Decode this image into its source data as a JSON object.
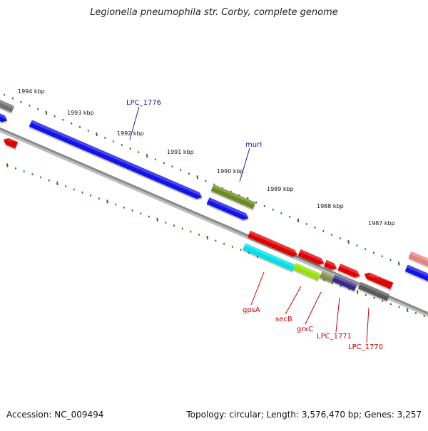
{
  "title": "Legionella pneumophila str. Corby, complete genome",
  "footer": {
    "accession_label": "Accession:",
    "accession": "NC_009494",
    "info": "Topology: circular; Length: 3,576,470 bp; Genes: 3,257"
  },
  "colors": {
    "backbone": "#7a7a7a",
    "tick": "#1a7a1a",
    "gene_label": "#cc0000",
    "annotation_label": "#1a1aa8"
  },
  "scale_labels": [
    "1994 kbp",
    "1993 kbp",
    "1992 kbp",
    "1991 kbp",
    "1990 kbp",
    "1989 kbp",
    "1988 kbp",
    "1987 kbp"
  ],
  "feature_labels": [
    {
      "text": "LPC_1776",
      "color": "#1a1aa8"
    },
    {
      "text": "murI",
      "color": "#1a1aa8"
    },
    {
      "text": "gpsA",
      "color": "#cc0000"
    },
    {
      "text": "secB",
      "color": "#cc0000"
    },
    {
      "text": "grxC",
      "color": "#cc0000"
    },
    {
      "text": "LPC_1771",
      "color": "#cc0000"
    },
    {
      "text": "LPC_1770",
      "color": "#cc0000"
    }
  ]
}
